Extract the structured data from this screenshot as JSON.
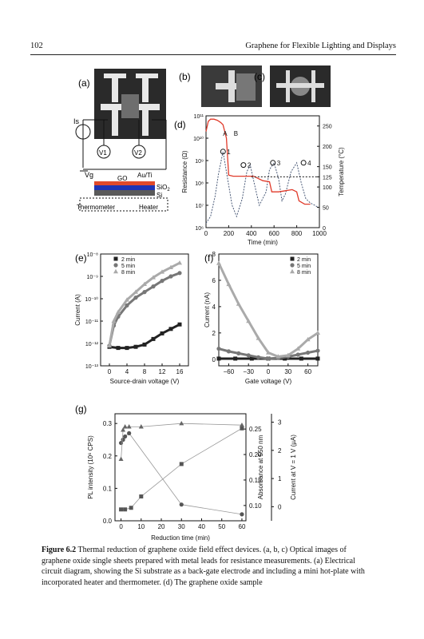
{
  "header": {
    "page_number": "102",
    "running_title": "Graphene for Flexible Lighting and Displays"
  },
  "panels": {
    "a": {
      "label": "(a)",
      "labels": {
        "is": "Is",
        "v1": "V1",
        "v2": "V2",
        "vg": "Vg",
        "go": "GO",
        "auti": "Au/Ti",
        "sio2": "SiO",
        "sio2_sub": "2",
        "si": "Si",
        "thermometer": "Thermometer",
        "heater": "Heater"
      }
    },
    "b": {
      "label": "(b)"
    },
    "c": {
      "label": "(c)"
    },
    "d": {
      "label": "(d)"
    },
    "e": {
      "label": "(e)"
    },
    "f": {
      "label": "(f)"
    },
    "g": {
      "label": "(g)"
    }
  },
  "caption": {
    "lead": "Figure 6.2",
    "text": "Thermal reduction of graphene oxide field effect devices. (a, b, c) Optical images of graphene oxide single sheets prepared with metal leads for resistance measurements. (a) Electrical circuit diagram, showing the Si substrate as a back-gate electrode and including a mini hot-plate with incorporated heater and thermometer. (d) The graphene oxide sample"
  },
  "chart_data": [
    {
      "id": "d",
      "type": "line",
      "xlabel": "Time (min)",
      "ylabel": "Resistance (Ω)",
      "y2label": "Temperature (°C)",
      "xlim": [
        0,
        1000
      ],
      "ylim_log10": [
        6,
        11
      ],
      "y2lim": [
        0,
        275
      ],
      "x_ticks": [
        "0",
        "200",
        "400",
        "600",
        "800",
        "1000"
      ],
      "y_ticks": [
        "10⁶",
        "10⁷",
        "10⁸",
        "10⁹",
        "10¹⁰",
        "10¹¹"
      ],
      "y2_ticks": [
        "0",
        "50",
        "100",
        "125",
        "150",
        "200",
        "250"
      ],
      "annotations": [
        "A",
        "B",
        "1",
        "2",
        "3",
        "4"
      ],
      "series": [
        {
          "color": "#e03a2a",
          "x": [
            0,
            20,
            40,
            70,
            100,
            130,
            150,
            180,
            200,
            240,
            300,
            360,
            420,
            500,
            560,
            580,
            640,
            700,
            760,
            800,
            820,
            870,
            920
          ],
          "y_log10": [
            10.3,
            10.75,
            10.85,
            10.85,
            10.8,
            10.7,
            10.6,
            10.0,
            8.35,
            8.3,
            8.3,
            8.3,
            8.3,
            8.1,
            8.05,
            7.6,
            7.6,
            7.65,
            7.7,
            7.6,
            7.2,
            7.05,
            7.05
          ]
        },
        {
          "dash": true,
          "x": [
            0,
            40,
            80,
            110,
            150,
            190,
            230,
            270,
            320,
            360,
            390,
            420,
            470,
            530,
            560,
            600,
            640,
            670,
            700,
            750,
            800,
            840,
            880,
            920,
            960,
            990
          ],
          "y_log10": [
            6.2,
            6.5,
            7.4,
            8.4,
            9.4,
            8.2,
            7.0,
            6.5,
            7.3,
            8.5,
            8.8,
            8.1,
            7.0,
            7.6,
            8.6,
            8.9,
            8.2,
            7.2,
            7.5,
            8.5,
            8.9,
            8.0,
            7.3,
            7.1,
            7.0,
            6.9
          ]
        }
      ]
    },
    {
      "id": "e",
      "type": "scatter",
      "xlabel": "Source-drain voltage (V)",
      "ylabel": "Current (A)",
      "xlim": [
        -2,
        18
      ],
      "ylim_log10": [
        -13,
        -8
      ],
      "x_ticks": [
        "0",
        "4",
        "8",
        "12",
        "16"
      ],
      "y_ticks": [
        "10⁻⁸",
        "10⁻⁹",
        "10⁻¹⁰",
        "10⁻¹¹",
        "10⁻¹²",
        "10⁻¹³"
      ],
      "legend": [
        "2 min",
        "5 min",
        "8 min"
      ],
      "series": [
        {
          "name": "2 min",
          "color": "#222",
          "x": [
            0,
            2,
            4,
            6,
            8,
            10,
            12,
            14,
            16
          ],
          "y_log10": [
            -12.15,
            -12.2,
            -12.2,
            -12.15,
            -12.05,
            -11.8,
            -11.55,
            -11.35,
            -11.15
          ]
        },
        {
          "name": "5 min",
          "color": "#777",
          "x": [
            0,
            1,
            2,
            4,
            6,
            8,
            10,
            12,
            14,
            16
          ],
          "y_log10": [
            -12.1,
            -11.2,
            -10.8,
            -10.3,
            -9.95,
            -9.7,
            -9.45,
            -9.2,
            -9.0,
            -8.85
          ]
        },
        {
          "name": "8 min",
          "color": "#aaa",
          "x": [
            0,
            1,
            2,
            4,
            6,
            8,
            10,
            12,
            14,
            16
          ],
          "y_log10": [
            -12.1,
            -11.0,
            -10.6,
            -10.05,
            -9.7,
            -9.35,
            -9.05,
            -8.8,
            -8.6,
            -8.4
          ]
        }
      ]
    },
    {
      "id": "f",
      "type": "scatter",
      "xlabel": "Gate voltage (V)",
      "ylabel": "Current (nA)",
      "xlim": [
        -75,
        75
      ],
      "ylim": [
        -0.5,
        8
      ],
      "x_ticks": [
        "−60",
        "−30",
        "0",
        "30",
        "60"
      ],
      "y_ticks": [
        "0",
        "2",
        "4",
        "6",
        "8"
      ],
      "legend": [
        "2 min",
        "5 min",
        "8 min"
      ],
      "series": [
        {
          "name": "2 min",
          "color": "#222",
          "x": [
            -75,
            -50,
            -25,
            0,
            25,
            50,
            75
          ],
          "y": [
            0.05,
            0.05,
            0.05,
            0.05,
            0.05,
            0.05,
            0.05
          ]
        },
        {
          "name": "5 min",
          "color": "#777",
          "x": [
            -75,
            -60,
            -45,
            -30,
            -15,
            0,
            15,
            30,
            45,
            60,
            75
          ],
          "y": [
            0.8,
            0.6,
            0.45,
            0.3,
            0.15,
            0.05,
            0.1,
            0.2,
            0.35,
            0.5,
            0.65
          ]
        },
        {
          "name": "8 min",
          "color": "#aaa",
          "x": [
            -75,
            -60,
            -45,
            -30,
            -15,
            0,
            15,
            30,
            45,
            60,
            75
          ],
          "y": [
            7.3,
            5.7,
            4.2,
            2.9,
            1.6,
            0.5,
            0.2,
            0.3,
            0.8,
            1.5,
            2.0
          ]
        }
      ]
    },
    {
      "id": "g",
      "type": "line",
      "xlabel": "Reduction time (min)",
      "ylabel": "PL intensity (10⁶ CPS)",
      "y2label": "Absorbance at 550 nm",
      "y3label": "Current at V = 1 V (µA)",
      "xlim": [
        -3,
        62
      ],
      "ylim": [
        0,
        0.33
      ],
      "x_ticks": [
        "0",
        "10",
        "20",
        "30",
        "40",
        "50",
        "60"
      ],
      "y_ticks": [
        "0.0",
        "0.1",
        "0.2",
        "0.3"
      ],
      "y2_ticks": [
        "0.10",
        "0.15",
        "0.20",
        "0.25"
      ],
      "y3_ticks": [
        "0",
        "1",
        "2",
        "3"
      ],
      "series": [
        {
          "marker": "circle",
          "x": [
            0,
            1,
            2,
            4,
            30,
            60
          ],
          "y": [
            0.24,
            0.25,
            0.26,
            0.27,
            0.05,
            0.02
          ]
        },
        {
          "marker": "square",
          "x": [
            0,
            2,
            5,
            10,
            30,
            60
          ],
          "y": [
            0.035,
            0.035,
            0.04,
            0.075,
            0.175,
            0.285
          ]
        },
        {
          "marker": "triangle",
          "x": [
            0,
            1,
            2,
            4,
            10,
            30,
            60
          ],
          "y": [
            0.19,
            0.28,
            0.29,
            0.29,
            0.29,
            0.3,
            0.295
          ]
        }
      ]
    }
  ]
}
